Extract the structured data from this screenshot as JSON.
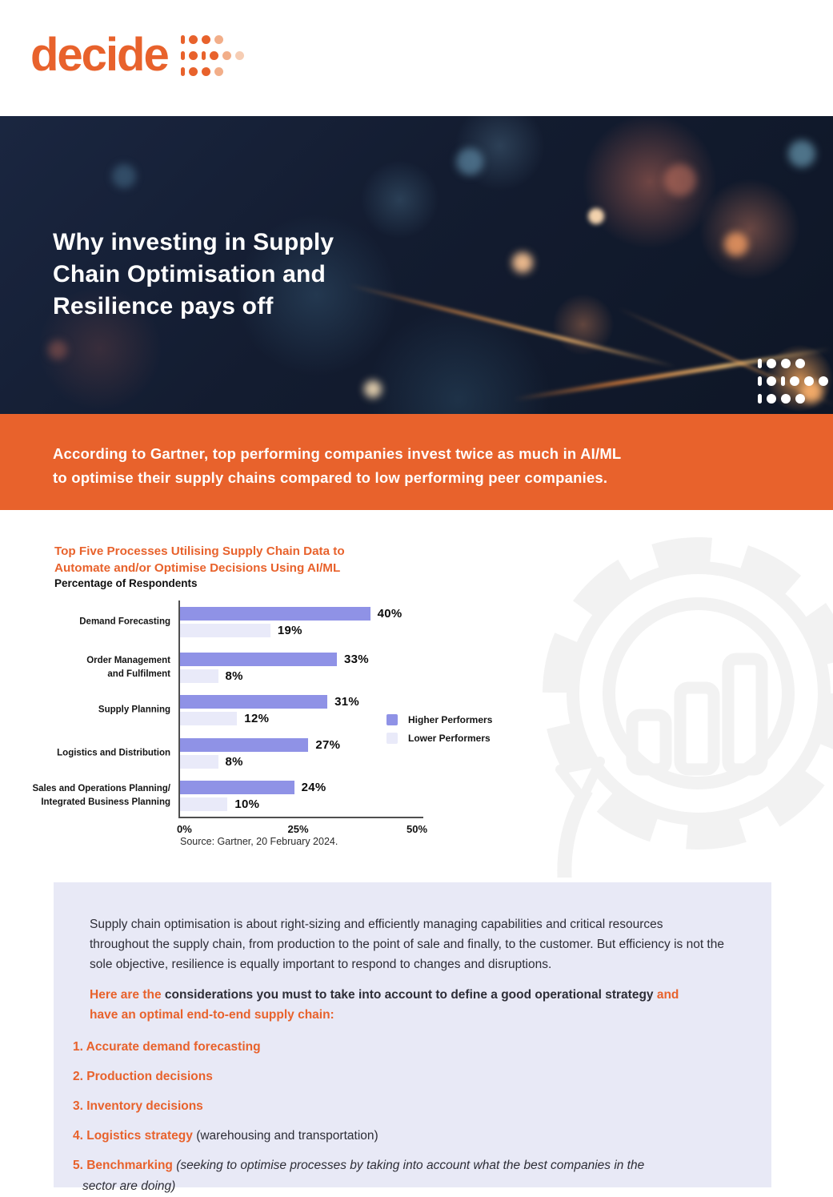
{
  "brand": {
    "logo_text": "decide"
  },
  "colors": {
    "accent_orange": "#E8622C",
    "hero_navy": "#131C30",
    "bar_higher": "#8F92E6",
    "bar_lower": "#E9EAF9",
    "panel_bg": "#E8E9F6",
    "text_dark": "#2D2D36"
  },
  "icons": {
    "logo_mark": "dots-arrow-grid-orange",
    "hero_mark": "dots-arrow-grid-white",
    "watermark": "gear-with-bar-chart-and-circular-arrow"
  },
  "hero": {
    "title_lines": [
      "Why investing in Supply",
      "Chain Optimisation and",
      "Resilience pays off"
    ]
  },
  "banner": {
    "line1": "According to Gartner, top performing companies invest twice as much in AI/ML",
    "line2": "to optimise their supply chains compared to low performing peer companies."
  },
  "chart_data": {
    "type": "bar",
    "orientation": "horizontal",
    "title": "Top Five Processes Utilising Supply Chain Data to Automate and/or Optimise Decisions Using AI/ML",
    "title_lines": [
      "Top Five Processes Utilising Supply Chain Data to",
      "Automate and/or Optimise Decisions Using AI/ML"
    ],
    "subtitle": "Percentage of Respondents",
    "categories": [
      "Demand Forecasting",
      "Order Management and Fulfilment",
      "Supply Planning",
      "Logistics and Distribution",
      "Sales and Operations Planning/ Integrated Business Planning"
    ],
    "category_lines": [
      [
        "Demand Forecasting"
      ],
      [
        "Order Management",
        "and Fulfilment"
      ],
      [
        "Supply Planning"
      ],
      [
        "Logistics and Distribution"
      ],
      [
        "Sales and Operations Planning/",
        "Integrated Business Planning"
      ]
    ],
    "series": [
      {
        "name": "Higher Performers",
        "color": "#8F92E6",
        "values": [
          40,
          33,
          31,
          27,
          24
        ]
      },
      {
        "name": "Lower Performers",
        "color": "#E9EAF9",
        "values": [
          19,
          8,
          12,
          8,
          10
        ]
      }
    ],
    "value_labels": [
      [
        "40%",
        "33%",
        "31%",
        "27%",
        "24%"
      ],
      [
        "19%",
        "8%",
        "12%",
        "8%",
        "10%"
      ]
    ],
    "xlim": [
      0,
      50
    ],
    "x_ticks": [
      "0%",
      "25%",
      "50%"
    ],
    "grid": false,
    "legend_position": "right-middle",
    "source": "Source: Gartner, 20 February 2024."
  },
  "panel": {
    "paragraph1": "Supply chain optimisation is about right-sizing and efficiently managing capabilities and critical resources throughout the supply chain, from production to the point of sale and finally, to the customer. But efficiency is not the sole objective, resilience is equally important to respond to changes and disruptions.",
    "lead_orange1": "Here are the ",
    "lead_dark": "considerations you must to take into account to define a good operational strategy ",
    "lead_orange2": "and have an optimal end-to-end supply chain:",
    "list": [
      {
        "label": "1. Accurate demand forecasting",
        "extra": "",
        "extra_style": "none"
      },
      {
        "label": "2. Production decisions",
        "extra": "",
        "extra_style": "none"
      },
      {
        "label": "3. Inventory decisions",
        "extra": "",
        "extra_style": "none"
      },
      {
        "label": "4. Logistics strategy",
        "extra": " (warehousing and transportation)",
        "extra_style": "regular"
      },
      {
        "label": "5. Benchmarking",
        "extra": " (seeking to optimise processes by taking into account what the best companies in the sector are doing)",
        "extra_style": "italic"
      }
    ]
  }
}
